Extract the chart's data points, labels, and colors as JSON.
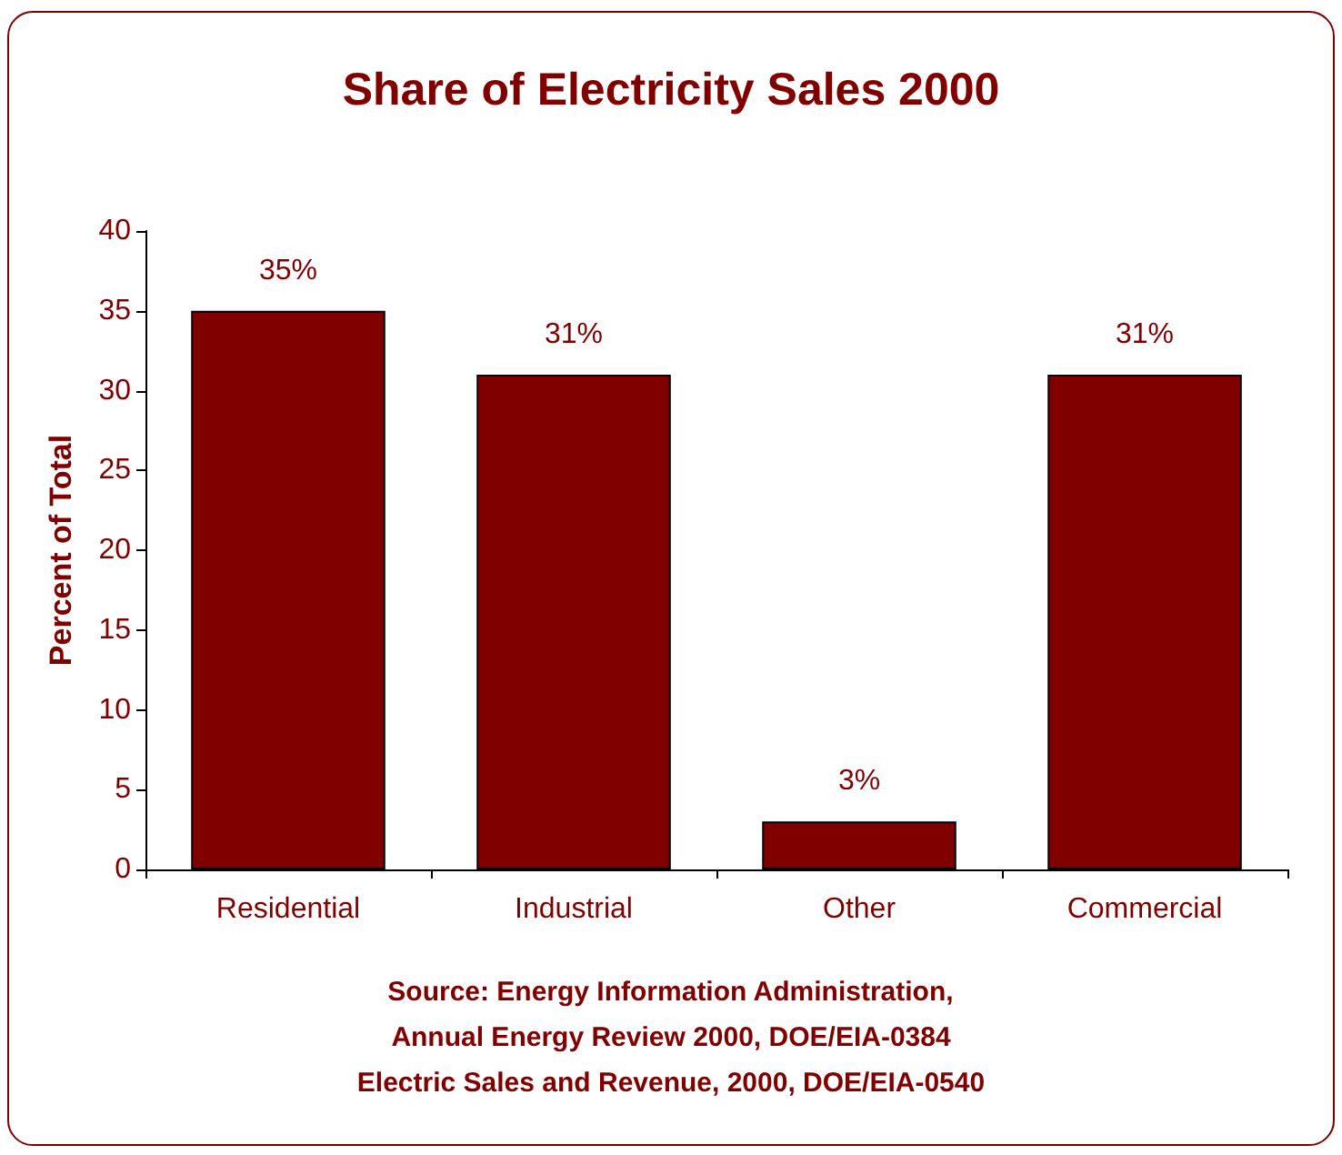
{
  "chart_data": {
    "type": "bar",
    "title": "Share of Electricity Sales 2000",
    "ylabel": "Percent of Total",
    "categories": [
      "Residential",
      "Industrial",
      "Other",
      "Commercial"
    ],
    "values": [
      35,
      31,
      3,
      31
    ],
    "color": "#800000",
    "value_labels": [
      "35%",
      "31%",
      "3%",
      "31%"
    ],
    "ylim": [
      0,
      40
    ],
    "yticks": [
      0,
      5,
      10,
      15,
      20,
      25,
      30,
      35,
      40
    ],
    "grid": false,
    "annotations": [
      "Source: Energy Information Administration,",
      "Annual Energy Review 2000, DOE/EIA-0384",
      "Electric Sales and Revenue, 2000, DOE/EIA-0540"
    ]
  }
}
